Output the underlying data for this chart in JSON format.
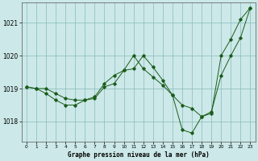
{
  "title": "Graphe pression niveau de la mer (hPa)",
  "background_color": "#cce8e8",
  "grid_color": "#88bbbb",
  "line_color": "#1a5c1a",
  "xlim": [
    -0.5,
    23.5
  ],
  "ylim": [
    1017.4,
    1021.6
  ],
  "yticks": [
    1018,
    1019,
    1020,
    1021
  ],
  "xticks": [
    0,
    1,
    2,
    3,
    4,
    5,
    6,
    7,
    8,
    9,
    10,
    11,
    12,
    13,
    14,
    15,
    16,
    17,
    18,
    19,
    20,
    21,
    22,
    23
  ],
  "line1_x": [
    0,
    1,
    2,
    3,
    4,
    5,
    6,
    7,
    8,
    9,
    10,
    11,
    12,
    13,
    14,
    15,
    16,
    17,
    18,
    19,
    20,
    21,
    22,
    23
  ],
  "line1_y": [
    1019.05,
    1019.0,
    1018.85,
    1018.65,
    1018.5,
    1018.5,
    1018.65,
    1018.75,
    1019.15,
    1019.4,
    1019.55,
    1019.6,
    1020.0,
    1019.65,
    1019.25,
    1018.8,
    1017.75,
    1017.65,
    1018.15,
    1018.25,
    1020.0,
    1020.5,
    1021.1,
    1021.45
  ],
  "line2_x": [
    0,
    1,
    2,
    3,
    4,
    5,
    6,
    7,
    8,
    9,
    10,
    11,
    12,
    13,
    14,
    15,
    16,
    17,
    18,
    19,
    20,
    21,
    22,
    23
  ],
  "line2_y": [
    1019.05,
    1019.0,
    1019.0,
    1018.85,
    1018.7,
    1018.65,
    1018.65,
    1018.7,
    1019.05,
    1019.15,
    1019.55,
    1020.0,
    1019.6,
    1019.35,
    1019.1,
    1018.8,
    1018.5,
    1018.4,
    1018.15,
    1018.3,
    1019.4,
    1020.0,
    1020.55,
    1021.45
  ],
  "xlabel_fontsize": 5.5,
  "ytick_fontsize": 5.5,
  "xtick_fontsize": 4.2,
  "linewidth": 0.7,
  "markersize": 1.8
}
